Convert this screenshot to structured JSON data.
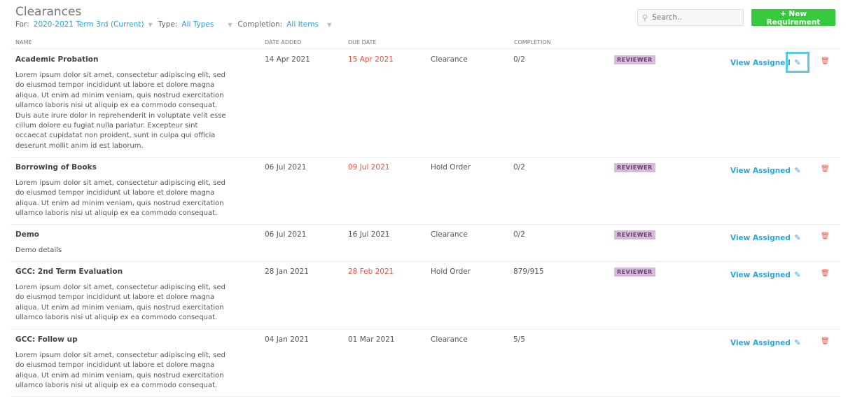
{
  "page": {
    "title": "Clearances"
  },
  "filters": {
    "for_label": "For:",
    "for_value": "2020-2021 Term 3rd (Current)",
    "type_label": "Type:",
    "type_value": "All Types",
    "completion_label": "Completion:",
    "completion_value": "All Items"
  },
  "search": {
    "placeholder": "Search.."
  },
  "toolbar": {
    "new_label": "+ New Requirement"
  },
  "columns": {
    "name": "NAME",
    "date_added": "DATE ADDED",
    "due_date": "DUE DATE",
    "completion": "COMPLETION"
  },
  "colors": {
    "accent": "#2aa7d6",
    "overdue": "#e8533f",
    "primary_button": "#36c93c",
    "badge": "#d9b8e0"
  },
  "rows": [
    {
      "name": "Academic Probation",
      "description": "Lorem ipsum dolor sit amet, consectetur adipiscing elit, sed do eiusmod tempor incididunt ut labore et dolore magna aliqua. Ut enim ad minim veniam, quis nostrud exercitation ullamco laboris nisi ut aliquip ex ea commodo consequat. Duis aute irure dolor in reprehenderit in voluptate velit esse cillum dolore eu fugiat nulla pariatur. Excepteur sint occaecat cupidatat non proident, sunt in culpa qui officia deserunt mollit anim id est laborum.",
      "date_added": "14 Apr 2021",
      "due_date": "15 Apr 2021",
      "overdue": true,
      "type": "Clearance",
      "completion": "0/2",
      "badge": "REVIEWER",
      "action": "View Assigned"
    },
    {
      "name": "Borrowing of Books",
      "description": "Lorem ipsum dolor sit amet, consectetur adipiscing elit, sed do eiusmod tempor incididunt ut labore et dolore magna aliqua. Ut enim ad minim veniam, quis nostrud exercitation ullamco laboris nisi ut aliquip ex ea commodo consequat.",
      "date_added": "06 Jul 2021",
      "due_date": "09 Jul 2021",
      "overdue": true,
      "type": "Hold Order",
      "completion": "0/2",
      "badge": "REVIEWER",
      "action": "View Assigned"
    },
    {
      "name": "Demo",
      "description": "Demo details",
      "date_added": "06 Jul 2021",
      "due_date": "16 Jul 2021",
      "overdue": false,
      "type": "Clearance",
      "completion": "0/2",
      "badge": "REVIEWER",
      "action": "View Assigned"
    },
    {
      "name": "GCC: 2nd Term Evaluation",
      "description": "Lorem ipsum dolor sit amet, consectetur adipiscing elit, sed do eiusmod tempor incididunt ut labore et dolore magna aliqua. Ut enim ad minim veniam, quis nostrud exercitation ullamco laboris nisi ut aliquip ex ea commodo consequat.",
      "date_added": "28 Jan 2021",
      "due_date": "28 Feb 2021",
      "overdue": true,
      "type": "Hold Order",
      "completion": "879/915",
      "badge": "REVIEWER",
      "action": "View Assigned"
    },
    {
      "name": "GCC: Follow up",
      "description": "Lorem ipsum dolor sit amet, consectetur adipiscing elit, sed do eiusmod tempor incididunt ut labore et dolore magna aliqua. Ut enim ad minim veniam, quis nostrud exercitation ullamco laboris nisi ut aliquip ex ea commodo consequat.",
      "date_added": "04 Jan 2021",
      "due_date": "01 Mar 2021",
      "overdue": false,
      "type": "Clearance",
      "completion": "5/5",
      "badge": "",
      "action": "View Assigned"
    }
  ]
}
